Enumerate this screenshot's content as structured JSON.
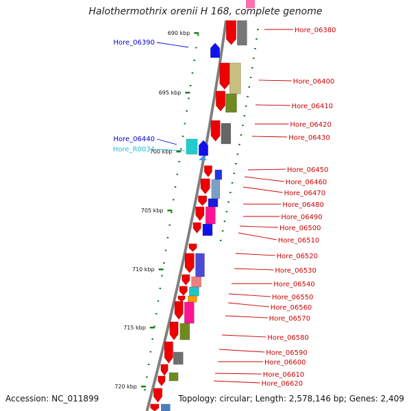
{
  "title": "Halothermothrix orenii H 168, complete genome",
  "accession": "Accession: NC_011899",
  "stats": "Topology: circular; Length: 2,578,146 bp; Genes: 2,409",
  "scale_labels": [
    "690 kbp",
    "695 kbp",
    "700 kbp",
    "705 kbp",
    "710 kbp",
    "715 kbp",
    "720 kbp"
  ],
  "colors": {
    "backbone": "#7f7f7f",
    "tick": "#1a7a1a",
    "reverse_label": "#cc0000",
    "forward_label": "#0000cc",
    "rna_label": "#22b8d8"
  },
  "right_labels": [
    "Hore_06380",
    "Hore_06400",
    "Hore_06410",
    "Hore_06420",
    "Hore_06430",
    "Hore_06450",
    "Hore_06460",
    "Hore_06470",
    "Hore_06480",
    "Hore_06490",
    "Hore_06500",
    "Hore_06510",
    "Hore_06520",
    "Hore_06530",
    "Hore_06540",
    "Hore_06550",
    "Hore_06560",
    "Hore_06570",
    "Hore_06580",
    "Hore_06590",
    "Hore_06600",
    "Hore_06610",
    "Hore_06620"
  ],
  "left_labels": [
    "Hore_06390",
    "Hore_06440",
    "Hore_R0034"
  ]
}
